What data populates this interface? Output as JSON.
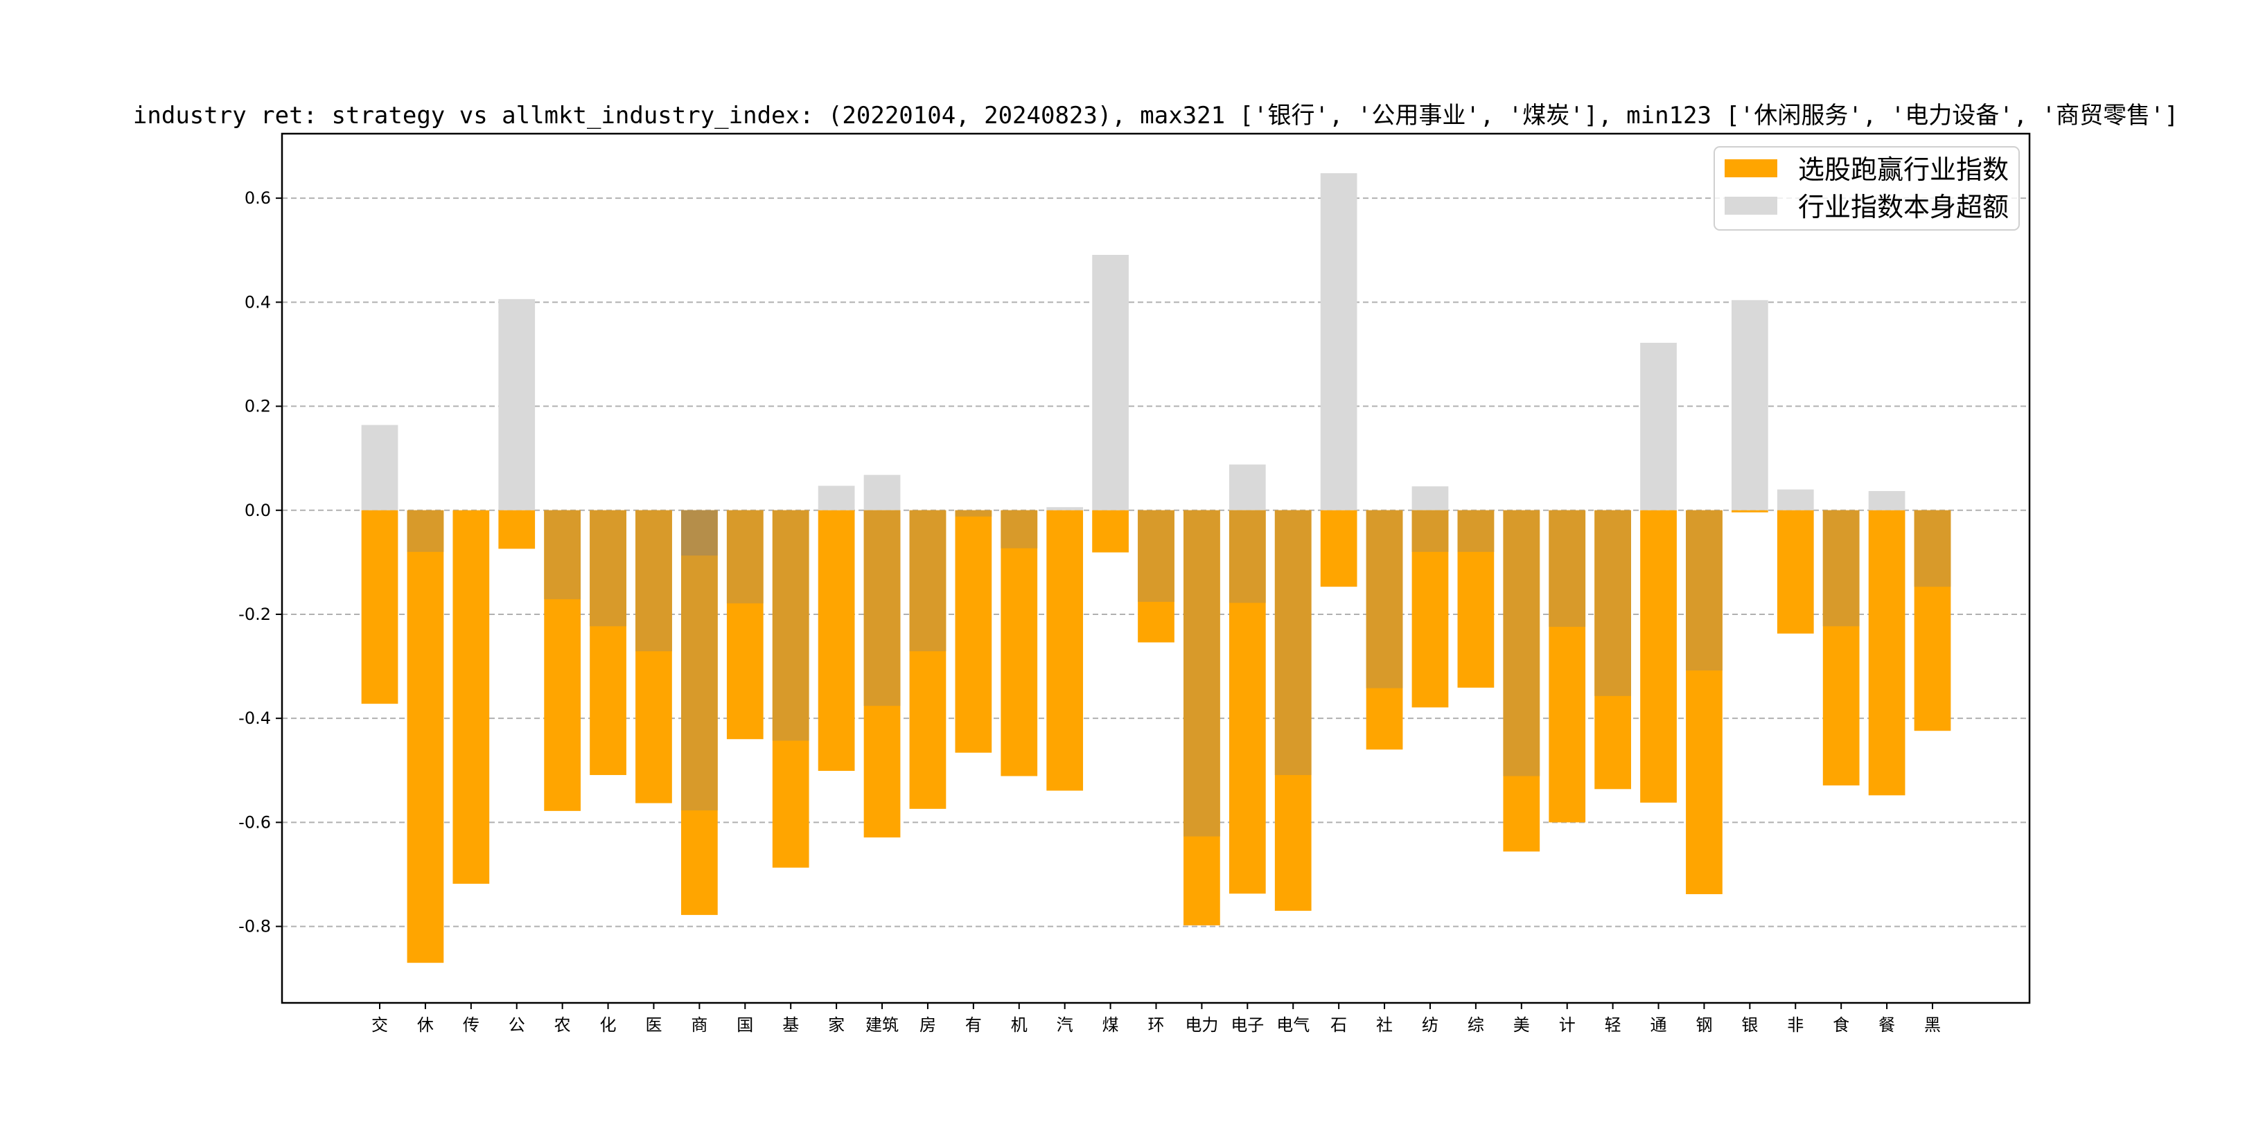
{
  "chart_data": {
    "type": "bar",
    "title": "industry ret: strategy vs allmkt_industry_index: (20220104, 20240823), max321 ['银行', '公用事业', '煤炭'], min123 ['休闲服务', '电力设备', '商贸零售']",
    "xlabel": "",
    "ylabel": "",
    "ylim": [
      -0.947,
      0.724
    ],
    "yticks": [
      0.6,
      0.4,
      0.2,
      0.0,
      -0.2,
      -0.4,
      -0.6,
      -0.8
    ],
    "ytick_labels": [
      "0.6",
      "0.4",
      "0.2",
      "0.0",
      "-0.2",
      "-0.4",
      "-0.6",
      "-0.8"
    ],
    "grid": "y dashed",
    "legend_position": "top-right",
    "categories": [
      "交",
      "休",
      "传",
      "公",
      "农",
      "化",
      "医",
      "商",
      "国",
      "基",
      "家",
      "建筑",
      "房",
      "有",
      "机",
      "汽",
      "煤",
      "环",
      "电力",
      "电子",
      "电气",
      "石",
      "社",
      "纺",
      "综",
      "美",
      "计",
      "轻",
      "通",
      "钢",
      "银",
      "非",
      "食",
      "餐",
      "黑"
    ],
    "series": [
      {
        "name": "行业指数本身超额",
        "color": "#D9D9D9",
        "values": [
          0.164,
          0,
          0,
          0.406,
          0,
          0,
          0,
          -0.087,
          0,
          0,
          0.047,
          0.068,
          0,
          0,
          0,
          0.006,
          0.491,
          0,
          0,
          0.088,
          0,
          0.648,
          0,
          0.046,
          0,
          0,
          0,
          0,
          0.322,
          0,
          0.404,
          0.04,
          0,
          0.037,
          0
        ]
      },
      {
        "name": "选股跑赢行业指数",
        "color": "#FFA500",
        "values": [
          -0.372,
          -0.87,
          -0.718,
          -0.074,
          -0.578,
          -0.509,
          -0.563,
          -0.778,
          -0.44,
          -0.687,
          -0.501,
          -0.629,
          -0.574,
          -0.466,
          -0.511,
          -0.539,
          -0.081,
          -0.254,
          -0.798,
          -0.737,
          -0.77,
          -0.147,
          -0.46,
          -0.379,
          -0.341,
          -0.656,
          -0.6,
          -0.536,
          -0.562,
          -0.738,
          -0.004,
          -0.237,
          -0.529,
          -0.548,
          -0.424
        ]
      },
      {
        "name": "",
        "color": "#D89A2A",
        "values": [
          0,
          -0.08,
          0,
          0,
          -0.171,
          -0.223,
          -0.271,
          -0.577,
          -0.179,
          -0.443,
          0,
          -0.376,
          -0.271,
          -0.012,
          -0.073,
          0,
          0,
          -0.176,
          -0.627,
          -0.178,
          -0.509,
          0,
          -0.342,
          -0.08,
          -0.08,
          -0.511,
          -0.224,
          -0.357,
          0,
          -0.308,
          0,
          0,
          -0.223,
          0,
          -0.147
        ]
      }
    ]
  }
}
